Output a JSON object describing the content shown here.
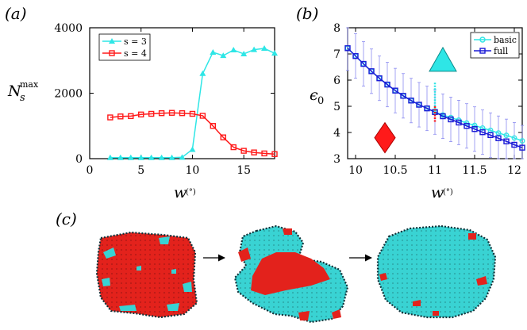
{
  "figure": {
    "panel_labels": [
      "(a)",
      "(b)",
      "(c)"
    ]
  },
  "chart_data": [
    {
      "id": "a",
      "type": "line",
      "panel_label": "(a)",
      "xlabel": "w",
      "xlabel_unit": "(°)",
      "ylabel": "N",
      "ylabel_sub": "s",
      "ylabel_sup": "max",
      "xlim": [
        0,
        18
      ],
      "ylim": [
        0,
        4000
      ],
      "xticks": [
        0,
        5,
        10,
        15
      ],
      "yticks": [
        0,
        2000,
        4000
      ],
      "legend_position": "top-left",
      "series": [
        {
          "name": "s = 3",
          "color": "#2ee6e6",
          "marker": "triangle",
          "x": [
            2,
            3,
            4,
            5,
            6,
            7,
            8,
            9,
            10,
            11,
            12,
            13,
            14,
            15,
            16,
            17,
            18
          ],
          "y": [
            30,
            30,
            30,
            30,
            30,
            30,
            30,
            40,
            280,
            2600,
            3250,
            3150,
            3320,
            3200,
            3330,
            3370,
            3220
          ]
        },
        {
          "name": "s = 4",
          "color": "#ff1a1a",
          "marker": "square",
          "x": [
            2,
            3,
            4,
            5,
            6,
            7,
            8,
            9,
            10,
            11,
            12,
            13,
            14,
            15,
            16,
            17,
            18
          ],
          "y": [
            1260,
            1290,
            1300,
            1350,
            1370,
            1390,
            1400,
            1390,
            1370,
            1310,
            1000,
            650,
            350,
            240,
            190,
            160,
            140
          ]
        }
      ]
    },
    {
      "id": "b",
      "type": "line",
      "panel_label": "(b)",
      "xlabel": "w",
      "xlabel_unit": "(°)",
      "ylabel": "ϵ",
      "ylabel_sub": "0",
      "xlim": [
        9.9,
        12.1
      ],
      "ylim": [
        3,
        8
      ],
      "xticks": [
        10,
        10.5,
        11,
        11.5,
        12
      ],
      "yticks": [
        3,
        4,
        5,
        6,
        7,
        8
      ],
      "legend_position": "top-right",
      "series": [
        {
          "name": "basic",
          "color": "#2ee6e6",
          "marker": "circle",
          "x": [
            9.9,
            10.0,
            10.1,
            10.2,
            10.3,
            10.4,
            10.5,
            10.6,
            10.7,
            10.8,
            10.9,
            11.0,
            11.1,
            11.2,
            11.3,
            11.4,
            11.5,
            11.6,
            11.7,
            11.8,
            11.9,
            12.0,
            12.1
          ],
          "y": [
            7.22,
            6.92,
            6.62,
            6.34,
            6.07,
            5.83,
            5.6,
            5.4,
            5.22,
            5.06,
            4.92,
            4.78,
            4.67,
            4.57,
            4.47,
            4.36,
            4.27,
            4.17,
            4.08,
            3.98,
            3.89,
            3.79,
            3.68
          ]
        },
        {
          "name": "full",
          "color": "#1a1ad6",
          "marker": "square",
          "error": 0.85,
          "x": [
            9.9,
            10.0,
            10.1,
            10.2,
            10.3,
            10.4,
            10.5,
            10.6,
            10.7,
            10.8,
            10.9,
            11.0,
            11.1,
            11.2,
            11.3,
            11.4,
            11.5,
            11.6,
            11.7,
            11.8,
            11.9,
            12.0,
            12.1
          ],
          "y": [
            7.22,
            6.92,
            6.62,
            6.34,
            6.07,
            5.83,
            5.6,
            5.4,
            5.22,
            5.06,
            4.92,
            4.78,
            4.62,
            4.5,
            4.38,
            4.25,
            4.13,
            4.01,
            3.9,
            3.78,
            3.66,
            3.53,
            3.42
          ]
        }
      ],
      "annotations": [
        {
          "shape": "triangle",
          "color": "#2ee6e6",
          "x": 11.1,
          "y": 6.7
        },
        {
          "shape": "diamond",
          "color": "#ff1a1a",
          "x": 10.37,
          "y": 3.8
        },
        {
          "shape": "vertical-bar",
          "color": "#2ee6e6",
          "x": 11.0,
          "y_from": 4.7,
          "y_to": 5.9
        },
        {
          "shape": "vertical-bar",
          "color": "#ff1a1a",
          "x": 11.0,
          "y_from": 4.4,
          "y_to": 5.0
        }
      ]
    }
  ],
  "panel_c": {
    "label": "(c)",
    "colors": {
      "cyan": "#39d3d3",
      "red": "#e3221c",
      "edge": "#11333a"
    },
    "clusters": [
      {
        "name": "cluster-left",
        "red_fraction": 0.85
      },
      {
        "name": "cluster-middle",
        "red_fraction": 0.4
      },
      {
        "name": "cluster-right",
        "red_fraction": 0.06
      }
    ]
  }
}
